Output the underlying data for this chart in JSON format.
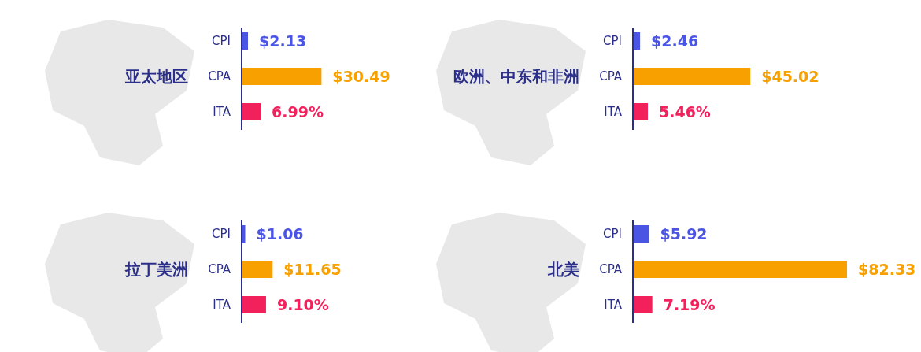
{
  "chart_data": [
    {
      "type": "bar",
      "orientation": "horizontal",
      "title": "亚太地区",
      "categories": [
        "CPI",
        "CPA",
        "ITA"
      ],
      "values": [
        2.13,
        30.49,
        6.99
      ],
      "colors": [
        "#4b55e3",
        "#f7a000",
        "#f2215c"
      ],
      "value_labels": [
        "$2.13",
        "$30.49",
        "6.99%"
      ]
    },
    {
      "type": "bar",
      "orientation": "horizontal",
      "title": "欧洲、中东和非洲",
      "categories": [
        "CPI",
        "CPA",
        "ITA"
      ],
      "values": [
        2.46,
        45.02,
        5.46
      ],
      "colors": [
        "#4b55e3",
        "#f7a000",
        "#f2215c"
      ],
      "value_labels": [
        "$2.46",
        "$45.02",
        "5.46%"
      ]
    },
    {
      "type": "bar",
      "orientation": "horizontal",
      "title": "拉丁美洲",
      "categories": [
        "CPI",
        "CPA",
        "ITA"
      ],
      "values": [
        1.06,
        11.65,
        9.1
      ],
      "colors": [
        "#4b55e3",
        "#f7a000",
        "#f2215c"
      ],
      "value_labels": [
        "$1.06",
        "$11.65",
        "9.10%"
      ]
    },
    {
      "type": "bar",
      "orientation": "horizontal",
      "title": "北美",
      "categories": [
        "CPI",
        "CPA",
        "ITA"
      ],
      "values": [
        5.92,
        82.33,
        7.19
      ],
      "colors": [
        "#4b55e3",
        "#f7a000",
        "#f2215c"
      ],
      "value_labels": [
        "$5.92",
        "$82.33",
        "7.19%"
      ]
    }
  ]
}
